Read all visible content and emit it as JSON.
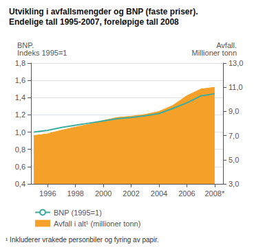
{
  "chart_data": {
    "type": "line",
    "title": "Utvikling i avfallsmengder og BNP (faste priser).",
    "subtitle": "Endelige tall 1995-2007, foreløpige tall 2008",
    "ylabel": "BNP.\nIndeks 1995=1",
    "y2label": "Avfall.\nMillioner tonn",
    "annotations": [
      "¹ Inkluderer vrakede personbiler og fyring av papir."
    ],
    "x": [
      1995,
      1996,
      1997,
      1998,
      1999,
      2000,
      2001,
      2002,
      2003,
      2004,
      2005,
      2006,
      2007,
      2008
    ],
    "xlim": [
      1994.8,
      2008.6
    ],
    "xticks": [
      1996,
      1998,
      2000,
      2002,
      2004,
      2006,
      {
        "value": 2008,
        "label": "2008*"
      }
    ],
    "ylim": [
      0.4,
      1.8
    ],
    "yticks": [
      {
        "value": 0.4,
        "label": "0,4"
      },
      {
        "value": 0.6,
        "label": "0,6"
      },
      {
        "value": 0.8,
        "label": "0,8"
      },
      {
        "value": 1.0,
        "label": "1,0"
      },
      {
        "value": 1.2,
        "label": "1,2"
      },
      {
        "value": 1.4,
        "label": "1,4"
      },
      {
        "value": 1.6,
        "label": "1,6"
      },
      {
        "value": 1.8,
        "label": "1,8"
      }
    ],
    "y2lim": [
      3.0,
      13.0
    ],
    "y2ticks": [
      {
        "value": 3.0,
        "label": "3,0"
      },
      {
        "value": 5.0,
        "label": "5,0"
      },
      {
        "value": 7.0,
        "label": "7,0"
      },
      {
        "value": 9.0,
        "label": "9,0"
      },
      {
        "value": 11.0,
        "label": "11,0"
      },
      {
        "value": 13.0,
        "label": "13,0"
      }
    ],
    "series": [
      {
        "name": "BNP (1995=1)",
        "type": "line",
        "color": "#3aada0",
        "values": [
          1.0,
          1.02,
          1.055,
          1.08,
          1.105,
          1.13,
          1.155,
          1.17,
          1.19,
          1.215,
          1.275,
          1.34,
          1.42,
          1.445
        ]
      },
      {
        "name": "Avfall i alt¹ (millioner tonn)",
        "type": "area",
        "color": "#f5a028",
        "axis": "y2",
        "values": [
          7.0,
          7.15,
          7.45,
          7.7,
          7.95,
          8.25,
          8.5,
          8.6,
          8.75,
          9.0,
          9.5,
          10.3,
          10.85,
          11.0
        ]
      }
    ],
    "grid": true,
    "legend": "lower left"
  }
}
